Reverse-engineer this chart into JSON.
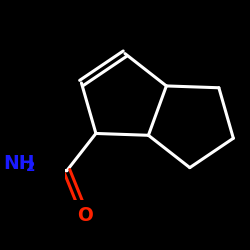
{
  "background_color": "#000000",
  "bond_color": "#ffffff",
  "oxygen_color": "#ff2200",
  "nitrogen_color": "#1a1aff",
  "figsize": [
    2.5,
    2.5
  ],
  "dpi": 100,
  "label_O": "O",
  "label_NH2": "NH",
  "label_2": "2"
}
